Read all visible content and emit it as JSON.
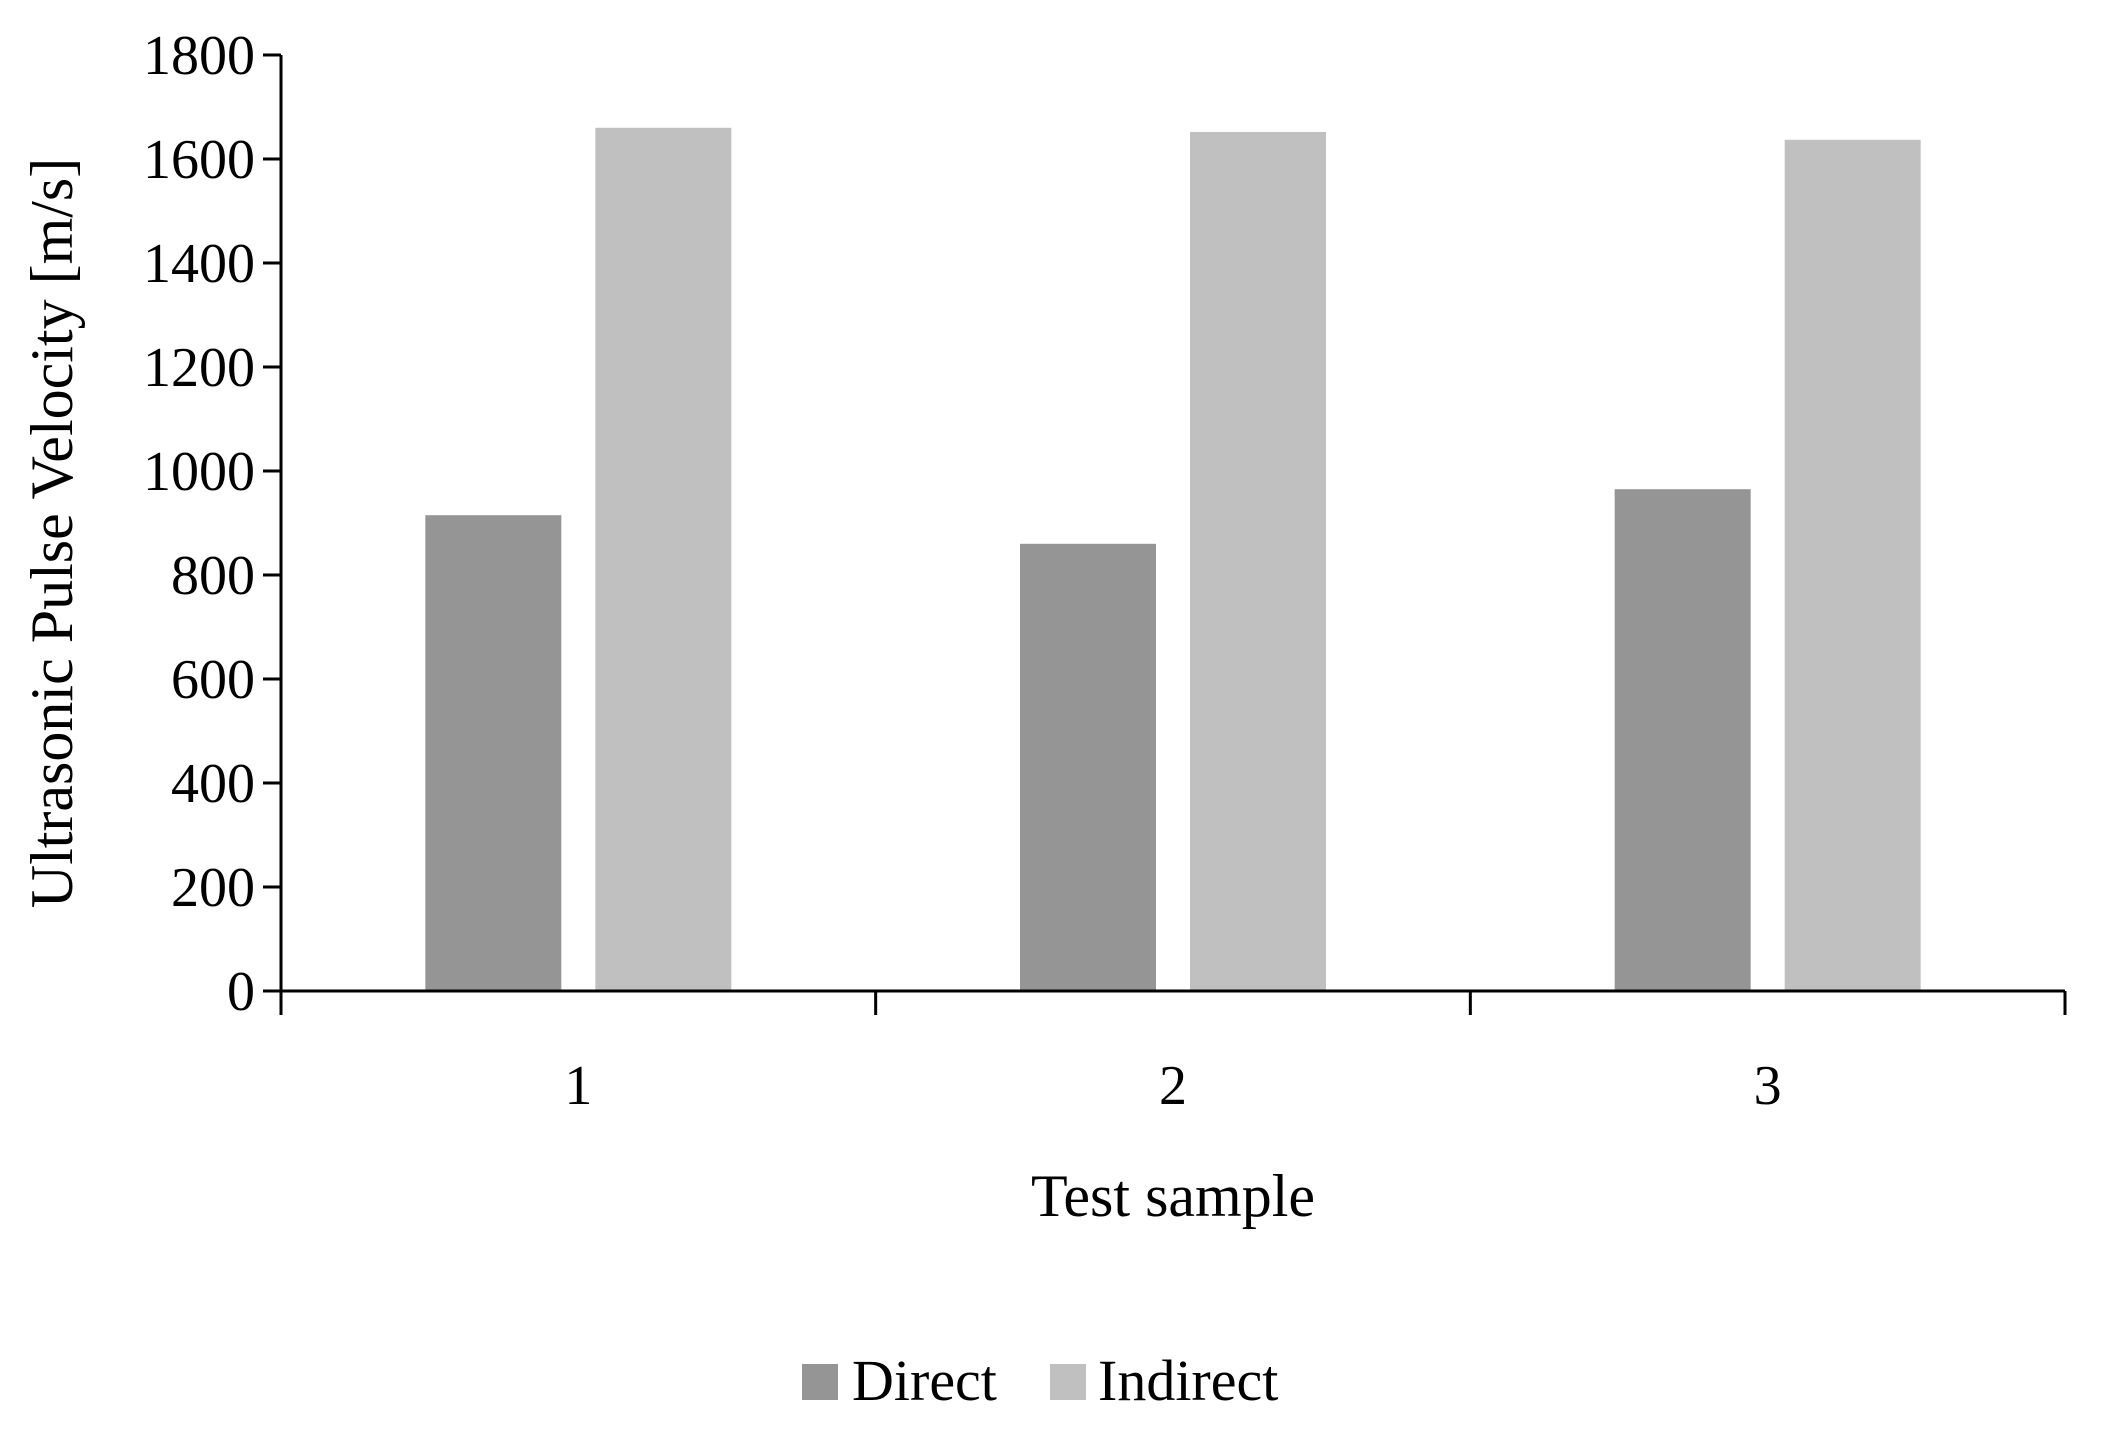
{
  "chart_data": {
    "type": "bar",
    "categories": [
      "1",
      "2",
      "3"
    ],
    "series": [
      {
        "name": "Direct",
        "color": "#959595",
        "values": [
          915,
          860,
          965
        ]
      },
      {
        "name": "Indirect",
        "color": "#c0c0c0",
        "values": [
          1660,
          1652,
          1637
        ]
      }
    ],
    "xlabel": "Test sample",
    "ylabel": "Ultrasonic Pulse Velocity [m/s]",
    "ylim": [
      0,
      1800
    ],
    "yticks": [
      0,
      200,
      400,
      600,
      800,
      1000,
      1200,
      1400,
      1600,
      1800
    ],
    "grid": false,
    "legend_position": "bottom-center"
  }
}
